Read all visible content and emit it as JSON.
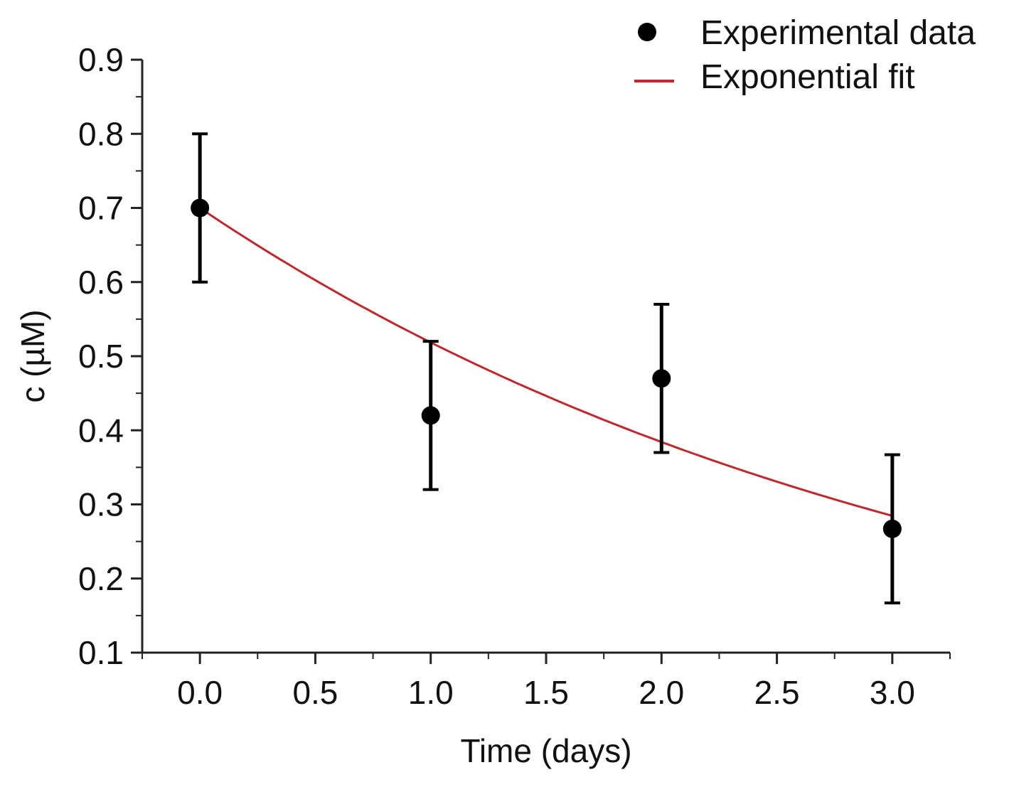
{
  "chart_data": {
    "type": "scatter",
    "title": "",
    "xlabel": "Time (days)",
    "ylabel": "c (µM)",
    "xlim": [
      -0.25,
      3.25
    ],
    "ylim": [
      0.1,
      0.9
    ],
    "xticks": [
      0.0,
      0.5,
      1.0,
      1.5,
      2.0,
      2.5,
      3.0
    ],
    "xtick_labels": [
      "0.0",
      "0.5",
      "1.0",
      "1.5",
      "2.0",
      "2.5",
      "3.0"
    ],
    "yticks": [
      0.1,
      0.2,
      0.3,
      0.4,
      0.5,
      0.6,
      0.7,
      0.8,
      0.9
    ],
    "ytick_labels": [
      "0.1",
      "0.2",
      "0.3",
      "0.4",
      "0.5",
      "0.6",
      "0.7",
      "0.8",
      "0.9"
    ],
    "legend_position": "top-right",
    "series": [
      {
        "name": "Experimental data",
        "kind": "points-with-error-bars",
        "color": "#000000",
        "x": [
          0,
          1,
          2,
          3
        ],
        "y": [
          0.7,
          0.42,
          0.47,
          0.267
        ],
        "error": [
          0.1,
          0.1,
          0.1,
          0.1
        ]
      },
      {
        "name": "Exponential fit",
        "kind": "line",
        "color": "#c0282d",
        "model": "y = a * exp(-k * x)",
        "a": 0.7,
        "k": 0.3,
        "x_range": [
          0,
          3
        ]
      }
    ]
  }
}
